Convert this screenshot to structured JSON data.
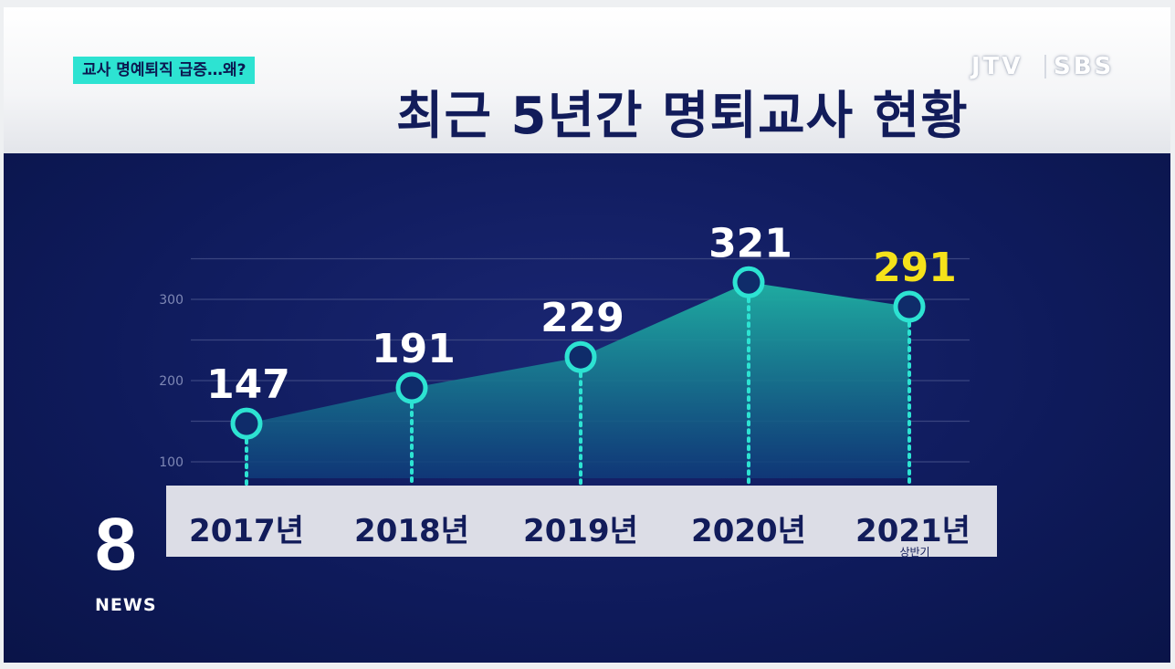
{
  "header": {
    "headline": "교사 명예퇴직 급증…왜?",
    "title": "최근 5년간 명퇴교사 현황",
    "logo_left": "JTV",
    "logo_right": "SBS"
  },
  "news_logo": {
    "number": "8",
    "text": "NEWS"
  },
  "colors": {
    "background": "#0e1a5a",
    "area": "#1fb3a4",
    "marker": "#2de3d2",
    "highlight_label": "#f5e21a",
    "label": "#ffffff"
  },
  "chart_data": {
    "type": "area",
    "title": "최근 5년간 명퇴교사 현황",
    "categories": [
      "2017년",
      "2018년",
      "2019년",
      "2020년",
      "2021년"
    ],
    "category_sublabels": [
      "",
      "",
      "",
      "",
      "상반기"
    ],
    "values": [
      147,
      191,
      229,
      321,
      291
    ],
    "data_labels": [
      "147",
      "191",
      "229",
      "321",
      "291"
    ],
    "highlight_index": 4,
    "y_ticks": [
      100,
      200,
      300
    ],
    "y_tick_labels": [
      "100",
      "200",
      "300"
    ],
    "ylim": [
      50,
      370
    ],
    "grid": true,
    "xlabel": "",
    "ylabel": ""
  }
}
